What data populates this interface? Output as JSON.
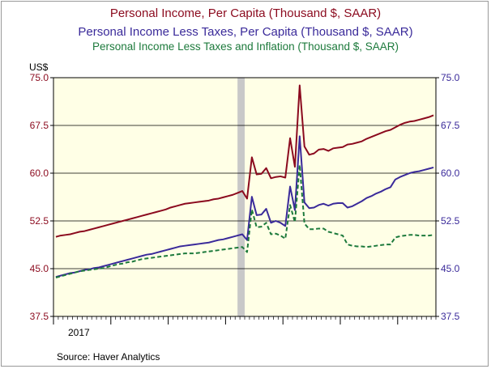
{
  "chart_data": {
    "type": "line",
    "title_lines": [
      "Personal Income,  Per Capita (Thousand $, SAAR)",
      "Personal Income Less Taxes, Per Capita (Thousand $, SAAR)",
      "Personal Income Less Taxes and Inflation (Thousand $, SAAR)"
    ],
    "ylabel": "US$",
    "source": "Source:  Haver Analytics",
    "x_label": "2017",
    "ylim": [
      37.5,
      75.0
    ],
    "yticks": [
      37.5,
      45.0,
      52.5,
      60.0,
      67.5,
      75.0
    ],
    "ytick_labels": [
      "37.5",
      "45.0",
      "52.5",
      "60.0",
      "67.5",
      "75.0"
    ],
    "xlim": [
      0,
      80
    ],
    "n_months": 80,
    "recession_shade": {
      "from": 38.5,
      "to": 40.0
    },
    "series": [
      {
        "name": "Personal Income,  Per Capita (Thousand $, SAAR)",
        "color": "#8b0a1e",
        "dash": "solid",
        "values": [
          50.0,
          50.2,
          50.3,
          50.4,
          50.6,
          50.8,
          50.9,
          51.1,
          51.3,
          51.5,
          51.7,
          51.9,
          52.1,
          52.3,
          52.5,
          52.7,
          52.9,
          53.1,
          53.3,
          53.5,
          53.7,
          53.9,
          54.1,
          54.3,
          54.6,
          54.8,
          55.0,
          55.2,
          55.3,
          55.4,
          55.5,
          55.6,
          55.7,
          55.9,
          56.0,
          56.2,
          56.4,
          56.6,
          56.9,
          57.2,
          56.0,
          62.5,
          59.8,
          59.9,
          60.8,
          59.2,
          59.4,
          59.5,
          59.3,
          65.5,
          61.0,
          73.8,
          64.2,
          62.9,
          63.1,
          63.7,
          63.8,
          63.5,
          63.9,
          64.0,
          64.1,
          64.5,
          64.6,
          64.8,
          65.0,
          65.4,
          65.7,
          66.0,
          66.3,
          66.6,
          66.8,
          67.2,
          67.6,
          67.9,
          68.1,
          68.2,
          68.4,
          68.6,
          68.8,
          69.1
        ]
      },
      {
        "name": "Personal Income Less Taxes, Per Capita (Thousand $, SAAR)",
        "color": "#3a2a9a",
        "dash": "solid",
        "values": [
          43.7,
          43.9,
          44.1,
          44.3,
          44.4,
          44.6,
          44.8,
          44.9,
          45.1,
          45.2,
          45.4,
          45.6,
          45.8,
          46.0,
          46.2,
          46.4,
          46.6,
          46.8,
          47.0,
          47.2,
          47.3,
          47.5,
          47.7,
          47.9,
          48.1,
          48.3,
          48.5,
          48.6,
          48.7,
          48.8,
          48.9,
          49.0,
          49.1,
          49.3,
          49.5,
          49.6,
          49.8,
          50.0,
          50.2,
          50.4,
          49.5,
          56.3,
          53.4,
          53.5,
          54.4,
          52.2,
          52.5,
          52.2,
          51.7,
          57.9,
          54.2,
          65.8,
          55.4,
          54.5,
          54.6,
          55.0,
          55.2,
          54.9,
          55.2,
          55.3,
          55.3,
          54.6,
          54.8,
          55.2,
          55.6,
          56.1,
          56.4,
          56.8,
          57.1,
          57.5,
          57.8,
          59.0,
          59.4,
          59.7,
          60.0,
          60.2,
          60.3,
          60.5,
          60.7,
          60.9
        ]
      },
      {
        "name": "Personal Income Less Taxes and Inflation (Thousand $, SAAR)",
        "color": "#1d7a3c",
        "dash": "dashed",
        "values": [
          43.6,
          43.8,
          44.0,
          44.2,
          44.4,
          44.6,
          44.7,
          44.8,
          44.9,
          45.0,
          45.1,
          45.3,
          45.5,
          45.7,
          45.8,
          46.0,
          46.1,
          46.3,
          46.5,
          46.6,
          46.7,
          46.8,
          46.9,
          47.0,
          47.1,
          47.2,
          47.3,
          47.4,
          47.4,
          47.4,
          47.5,
          47.6,
          47.7,
          47.8,
          47.9,
          48.0,
          48.1,
          48.2,
          48.3,
          48.4,
          47.6,
          54.3,
          51.5,
          51.6,
          52.2,
          50.4,
          50.5,
          50.2,
          49.7,
          55.0,
          52.3,
          61.3,
          52.1,
          51.2,
          51.2,
          51.3,
          51.3,
          50.8,
          50.6,
          50.4,
          50.2,
          48.8,
          48.6,
          48.5,
          48.5,
          48.4,
          48.5,
          48.6,
          48.7,
          48.8,
          48.8,
          49.9,
          50.1,
          50.2,
          50.3,
          50.3,
          50.2,
          50.2,
          50.2,
          50.3
        ]
      }
    ]
  }
}
